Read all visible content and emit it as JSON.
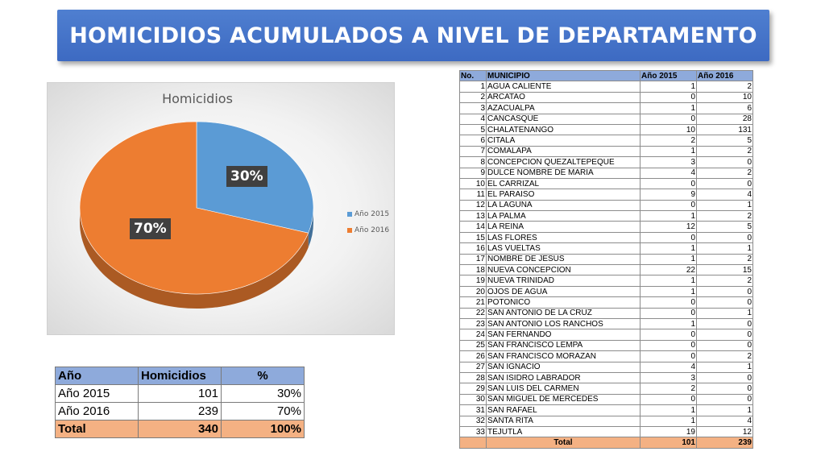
{
  "title": "HOMICIDIOS ACUMULADOS A NIVEL DE DEPARTAMENTO",
  "chart_data": {
    "type": "pie",
    "title": "Homicidios",
    "categories": [
      "Año 2015",
      "Año 2016"
    ],
    "values": [
      101,
      239
    ],
    "data_labels": [
      "30%",
      "70%"
    ],
    "colors": [
      "#5b9bd5",
      "#ed7d31"
    ],
    "legend_position": "right"
  },
  "summary": {
    "headers": [
      "Año",
      "Homicidios",
      "%"
    ],
    "rows": [
      {
        "year": "Año 2015",
        "homicidios": "101",
        "pct": "30%"
      },
      {
        "year": "Año 2016",
        "homicidios": "239",
        "pct": "70%"
      }
    ],
    "total": {
      "label": "Total",
      "homicidios": "340",
      "pct": "100%"
    }
  },
  "municipios": {
    "headers": [
      "No.",
      "MUNICIPIO",
      "Año 2015",
      "Año 2016"
    ],
    "rows": [
      [
        "1",
        "AGUA CALIENTE",
        "1",
        "2"
      ],
      [
        "2",
        "ARCATAO",
        "0",
        "10"
      ],
      [
        "3",
        "AZACUALPA",
        "1",
        "6"
      ],
      [
        "4",
        "CANCASQUE",
        "0",
        "28"
      ],
      [
        "5",
        "CHALATENANGO",
        "10",
        "131"
      ],
      [
        "6",
        "CITALA",
        "2",
        "5"
      ],
      [
        "7",
        "COMALAPA",
        "1",
        "2"
      ],
      [
        "8",
        "CONCEPCION QUEZALTEPEQUE",
        "3",
        "0"
      ],
      [
        "9",
        "DULCE NOMBRE DE MARIA",
        "4",
        "2"
      ],
      [
        "10",
        "EL CARRIZAL",
        "0",
        "0"
      ],
      [
        "11",
        "EL PARAISO",
        "9",
        "4"
      ],
      [
        "12",
        "LA LAGUNA",
        "0",
        "1"
      ],
      [
        "13",
        "LA PALMA",
        "1",
        "2"
      ],
      [
        "14",
        "LA REINA",
        "12",
        "5"
      ],
      [
        "15",
        "LAS FLORES",
        "0",
        "0"
      ],
      [
        "16",
        "LAS VUELTAS",
        "1",
        "1"
      ],
      [
        "17",
        "NOMBRE DE JESUS",
        "1",
        "2"
      ],
      [
        "18",
        "NUEVA CONCEPCION",
        "22",
        "15"
      ],
      [
        "19",
        "NUEVA TRINIDAD",
        "1",
        "2"
      ],
      [
        "20",
        "OJOS DE AGUA",
        "1",
        "0"
      ],
      [
        "21",
        "POTONICO",
        "0",
        "0"
      ],
      [
        "22",
        "SAN ANTONIO DE LA CRUZ",
        "0",
        "1"
      ],
      [
        "23",
        "SAN ANTONIO LOS RANCHOS",
        "1",
        "0"
      ],
      [
        "24",
        "SAN FERNANDO",
        "0",
        "0"
      ],
      [
        "25",
        "SAN FRANCISCO LEMPA",
        "0",
        "0"
      ],
      [
        "26",
        "SAN FRANCISCO MORAZAN",
        "0",
        "2"
      ],
      [
        "27",
        "SAN IGNACIO",
        "4",
        "1"
      ],
      [
        "28",
        "SAN ISIDRO LABRADOR",
        "3",
        "0"
      ],
      [
        "29",
        "SAN LUIS DEL CARMEN",
        "2",
        "0"
      ],
      [
        "30",
        "SAN MIGUEL DE MERCEDES",
        "0",
        "0"
      ],
      [
        "31",
        "SAN RAFAEL",
        "1",
        "1"
      ],
      [
        "32",
        "SANTA RITA",
        "1",
        "4"
      ],
      [
        "33",
        "TEJUTLA",
        "19",
        "12"
      ]
    ],
    "total": {
      "label": "Total",
      "y2015": "101",
      "y2016": "239"
    }
  }
}
